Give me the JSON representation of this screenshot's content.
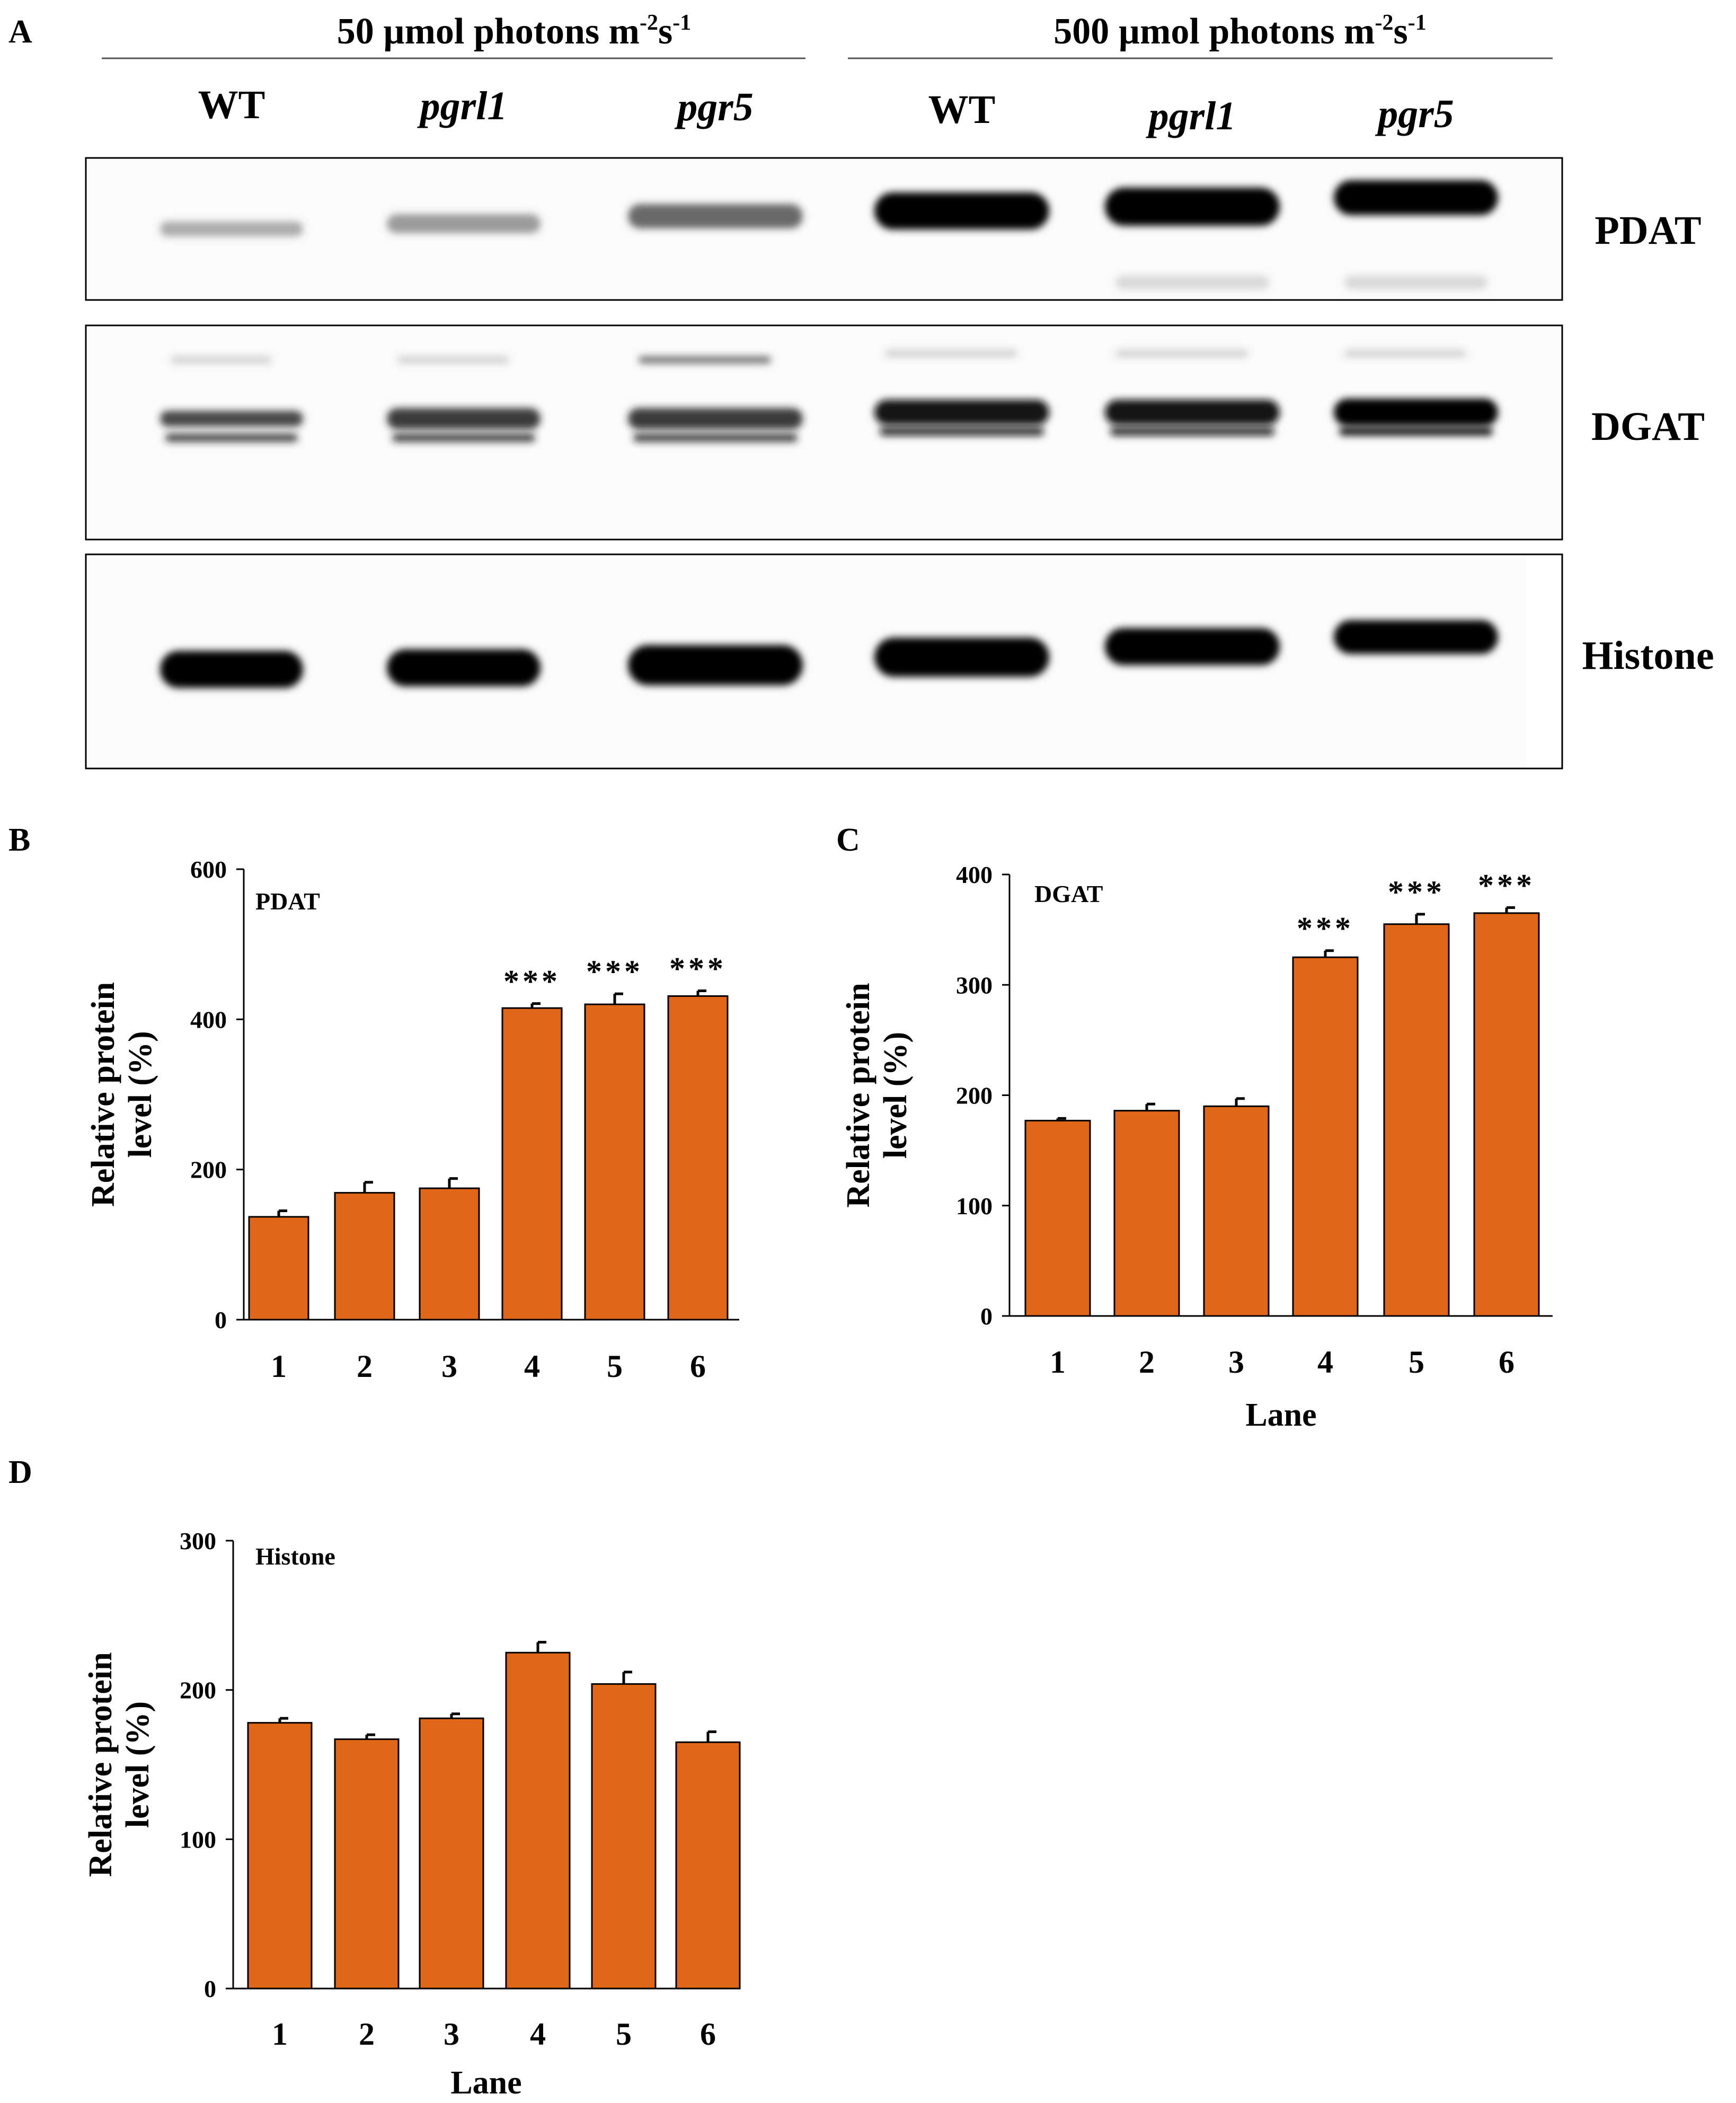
{
  "colors": {
    "bar": "#E06618",
    "bar_edge": "#000000",
    "blot_band": "#050505",
    "axis": "#000000"
  },
  "blot": {
    "panel_letter": "A",
    "conditions": [
      {
        "prefix": "50 µmol photons m",
        "sup1": "-2",
        "mid": "s",
        "sup2": "-1"
      },
      {
        "prefix": "500 µmol photons m",
        "sup1": "-2",
        "mid": "s",
        "sup2": "-1"
      }
    ],
    "lanes": [
      {
        "label": "WT",
        "italic": false
      },
      {
        "label": "pgrl1",
        "italic": true
      },
      {
        "label": "pgr5",
        "italic": true
      },
      {
        "label": "WT",
        "italic": false
      },
      {
        "label": "pgrl1",
        "italic": true
      },
      {
        "label": "pgr5",
        "italic": true
      }
    ],
    "rows": [
      {
        "protein": "PDAT",
        "band_intensity": [
          0.25,
          0.35,
          0.6,
          1.0,
          1.0,
          1.0
        ]
      },
      {
        "protein": "DGAT",
        "band_intensity": [
          0.75,
          0.8,
          0.8,
          0.95,
          0.95,
          1.0
        ]
      },
      {
        "protein": "Histone",
        "band_intensity": [
          1.0,
          1.0,
          1.0,
          1.0,
          1.0,
          1.0
        ]
      }
    ]
  },
  "chart_data": [
    {
      "panel": "B",
      "type": "bar",
      "title": "PDAT",
      "xlabel": "",
      "ylabel": "Relative protein level (%)",
      "categories": [
        "1",
        "2",
        "3",
        "4",
        "5",
        "6"
      ],
      "values": [
        137,
        169,
        175,
        415,
        420,
        431
      ],
      "errors": [
        8,
        14,
        13,
        6,
        14,
        7
      ],
      "significance": [
        "",
        "",
        "",
        "***",
        "***",
        "***"
      ],
      "ylim": [
        0,
        600
      ],
      "yticks": [
        0,
        200,
        400,
        600
      ]
    },
    {
      "panel": "C",
      "type": "bar",
      "title": "DGAT",
      "xlabel": "Lane",
      "ylabel": "Relative protein level (%)",
      "categories": [
        "1",
        "2",
        "3",
        "4",
        "5",
        "6"
      ],
      "values": [
        177,
        186,
        190,
        325,
        355,
        365
      ],
      "errors": [
        2,
        6,
        7,
        6,
        9,
        5
      ],
      "significance": [
        "",
        "",
        "",
        "***",
        "***",
        "***"
      ],
      "ylim": [
        0,
        400
      ],
      "yticks": [
        0,
        100,
        200,
        300,
        400
      ]
    },
    {
      "panel": "D",
      "type": "bar",
      "title": "Histone",
      "xlabel": "Lane",
      "ylabel": "Relative protein level (%)",
      "categories": [
        "1",
        "2",
        "3",
        "4",
        "5",
        "6"
      ],
      "values": [
        178,
        167,
        181,
        225,
        204,
        165
      ],
      "errors": [
        3,
        3,
        3,
        7,
        8,
        7
      ],
      "significance": [
        "",
        "",
        "",
        "",
        "",
        ""
      ],
      "ylim": [
        0,
        300
      ],
      "yticks": [
        0,
        100,
        200,
        300
      ]
    }
  ]
}
